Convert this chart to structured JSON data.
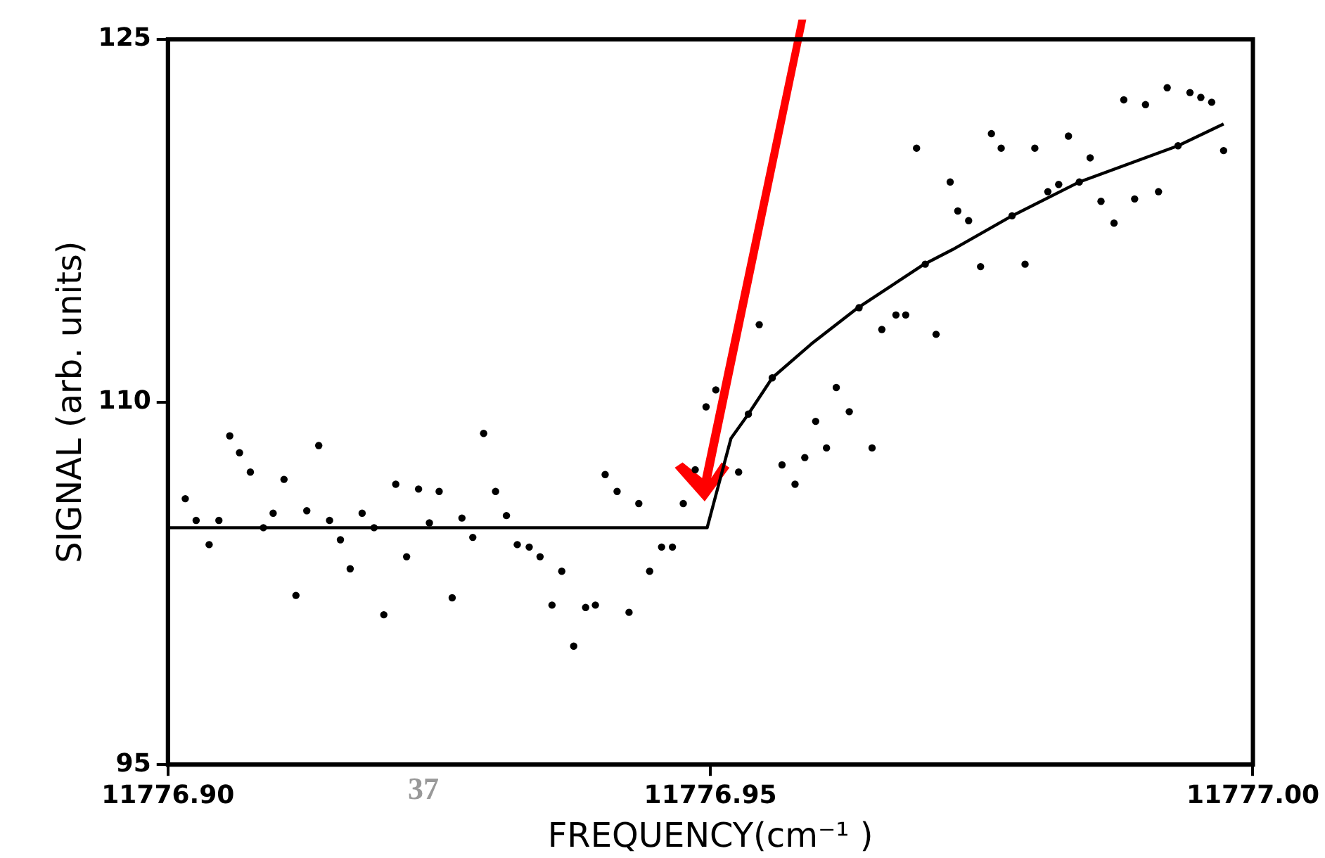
{
  "chart_data": {
    "type": "scatter",
    "xlabel": "FREQUENCY(cm⁻¹ )",
    "ylabel": "SIGNAL (arb. units)",
    "annotations": [
      "37"
    ],
    "xlim": [
      11776.9,
      11777.0
    ],
    "ylim": [
      95,
      125
    ],
    "xticks": [
      {
        "value": 11776.9,
        "label": "11776.90"
      },
      {
        "value": 11776.95,
        "label": "11776.95"
      },
      {
        "value": 11777.0,
        "label": "11777.00"
      }
    ],
    "yticks": [
      95,
      110,
      125
    ],
    "grid": false,
    "legend": false,
    "marker": "circle",
    "series": [
      {
        "color": "#000000",
        "x": [
          11776.9016,
          11776.9026,
          11776.9038,
          11776.9047,
          11776.9057,
          11776.9066,
          11776.9076,
          11776.9088,
          11776.9097,
          11776.9107,
          11776.9118,
          11776.9128,
          11776.9139,
          11776.9149,
          11776.9159,
          11776.9168,
          11776.9179,
          11776.919,
          11776.9199,
          11776.921,
          11776.922,
          11776.9231,
          11776.9241,
          11776.925,
          11776.9262,
          11776.9271,
          11776.9281,
          11776.9291,
          11776.9302,
          11776.9312,
          11776.9322,
          11776.9333,
          11776.9343,
          11776.9354,
          11776.9363,
          11776.9374,
          11776.9385,
          11776.9394,
          11776.9403,
          11776.9414,
          11776.9425,
          11776.9434,
          11776.9444,
          11776.9455,
          11776.9465,
          11776.9475,
          11776.9486,
          11776.9496,
          11776.9505,
          11776.9526,
          11776.9535,
          11776.9545,
          11776.9557,
          11776.9566,
          11776.9578,
          11776.9587,
          11776.9597,
          11776.9607,
          11776.9616,
          11776.9628,
          11776.9637,
          11776.9649,
          11776.9658,
          11776.9671,
          11776.968,
          11776.969,
          11776.9698,
          11776.9708,
          11776.9721,
          11776.9728,
          11776.9738,
          11776.9749,
          11776.9759,
          11776.9768,
          11776.9778,
          11776.979,
          11776.9799,
          11776.9811,
          11776.9821,
          11776.983,
          11776.984,
          11776.985,
          11776.986,
          11776.9872,
          11776.9881,
          11776.9891,
          11776.9901,
          11776.9913,
          11776.9921,
          11776.9931,
          11776.9942,
          11776.9952,
          11776.9962,
          11776.9973
        ],
        "values": [
          106.0,
          105.1,
          104.1,
          105.1,
          108.6,
          107.9,
          107.1,
          104.8,
          105.4,
          106.8,
          102.0,
          105.5,
          108.2,
          105.1,
          104.3,
          103.1,
          105.4,
          104.8,
          101.2,
          106.6,
          103.6,
          106.4,
          105.0,
          106.3,
          101.9,
          105.2,
          104.4,
          108.7,
          106.3,
          105.3,
          104.1,
          104.0,
          103.6,
          101.6,
          103.0,
          99.9,
          101.5,
          101.6,
          107.0,
          106.3,
          101.3,
          105.8,
          103.0,
          104.0,
          104.0,
          105.8,
          107.2,
          109.8,
          110.5,
          107.1,
          109.5,
          113.2,
          111.0,
          107.4,
          106.6,
          107.7,
          109.2,
          108.1,
          110.6,
          109.6,
          113.9,
          108.1,
          113.0,
          113.6,
          113.6,
          120.5,
          115.7,
          112.8,
          119.1,
          117.9,
          117.5,
          115.6,
          121.1,
          120.5,
          117.7,
          115.7,
          120.5,
          118.7,
          119.0,
          121.0,
          119.1,
          120.1,
          118.3,
          117.4,
          122.5,
          118.4,
          122.3,
          118.7,
          123.0,
          120.6,
          122.8,
          122.6,
          122.4,
          120.4
        ]
      },
      {
        "type": "line",
        "color": "#000000",
        "marker": "none",
        "x": [
          11776.9,
          11776.9497,
          11776.9519,
          11776.9535,
          11776.9557,
          11776.9593,
          11776.9636,
          11776.9697,
          11776.9723,
          11776.9778,
          11776.984,
          11776.9931,
          11776.9973
        ],
        "values": [
          104.8,
          104.8,
          108.5,
          109.5,
          111.0,
          112.4,
          113.9,
          115.7,
          116.3,
          117.7,
          119.1,
          120.6,
          121.5
        ]
      }
    ]
  }
}
